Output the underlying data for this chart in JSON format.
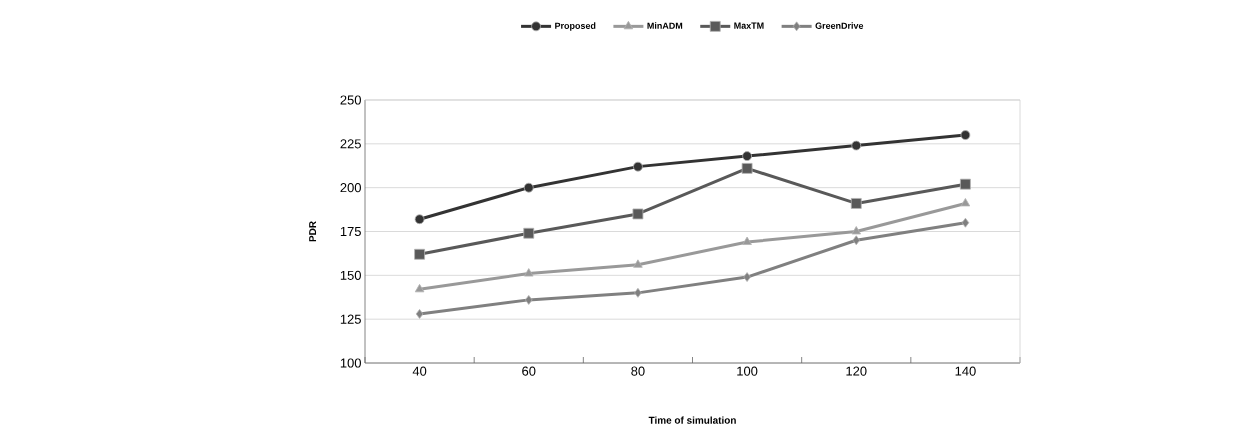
{
  "chart_data": {
    "type": "line",
    "xlabel": "Time of simulation",
    "ylabel": "PDR",
    "categories": [
      "40",
      "60",
      "80",
      "100",
      "120",
      "140"
    ],
    "series": [
      {
        "name": "Proposed",
        "color": "#333333",
        "marker": "circle",
        "values": [
          182,
          200,
          212,
          218,
          224,
          230
        ]
      },
      {
        "name": "MinADM",
        "color": "#999999",
        "marker": "triangle",
        "values": [
          142,
          151,
          156,
          169,
          175,
          191
        ]
      },
      {
        "name": "MaxTM",
        "color": "#595959",
        "marker": "square",
        "values": [
          162,
          174,
          185,
          211,
          191,
          202
        ]
      },
      {
        "name": "GreenDrive",
        "color": "#808080",
        "marker": "diamond",
        "values": [
          128,
          136,
          140,
          149,
          170,
          180
        ]
      }
    ],
    "ylim": [
      100,
      250
    ],
    "yticks": [
      100,
      125,
      150,
      175,
      200,
      225,
      250
    ],
    "grid": "y",
    "legend": "top"
  }
}
